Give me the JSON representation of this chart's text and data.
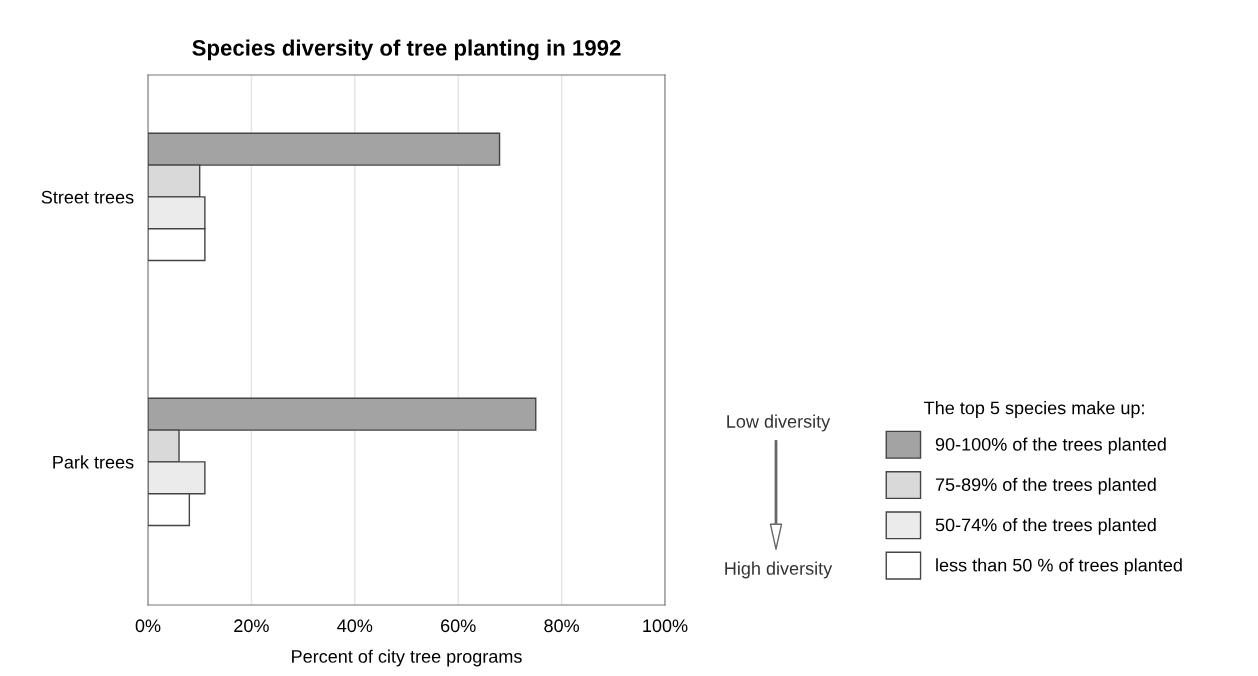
{
  "chart_data": {
    "type": "bar",
    "orientation": "horizontal",
    "title": "Species diversity of tree planting in 1992",
    "xlabel": "Percent of city tree programs",
    "legend_title": "The top 5 species make up:",
    "categories": [
      "Street trees",
      "Park trees"
    ],
    "series": [
      {
        "name": "90-100% of the trees planted",
        "color": "#a3a3a3",
        "values": [
          68,
          75
        ]
      },
      {
        "name": "75-89% of the trees planted",
        "color": "#d9d9d9",
        "values": [
          10,
          6
        ]
      },
      {
        "name": "50-74% of the trees planted",
        "color": "#ebebeb",
        "values": [
          11,
          11
        ]
      },
      {
        "name": "less than 50 % of trees planted",
        "color": "#ffffff",
        "values": [
          11,
          8
        ]
      }
    ],
    "xlim": [
      0,
      100
    ],
    "xticks": [
      {
        "value": 0,
        "label": "0%"
      },
      {
        "value": 20,
        "label": "20%"
      },
      {
        "value": 40,
        "label": "40%"
      },
      {
        "value": 60,
        "label": "60%"
      },
      {
        "value": 80,
        "label": "80%"
      },
      {
        "value": 100,
        "label": "100%"
      }
    ],
    "grid": "x",
    "legend": "right",
    "annotations": [
      "Low diversity",
      "High diversity"
    ]
  }
}
